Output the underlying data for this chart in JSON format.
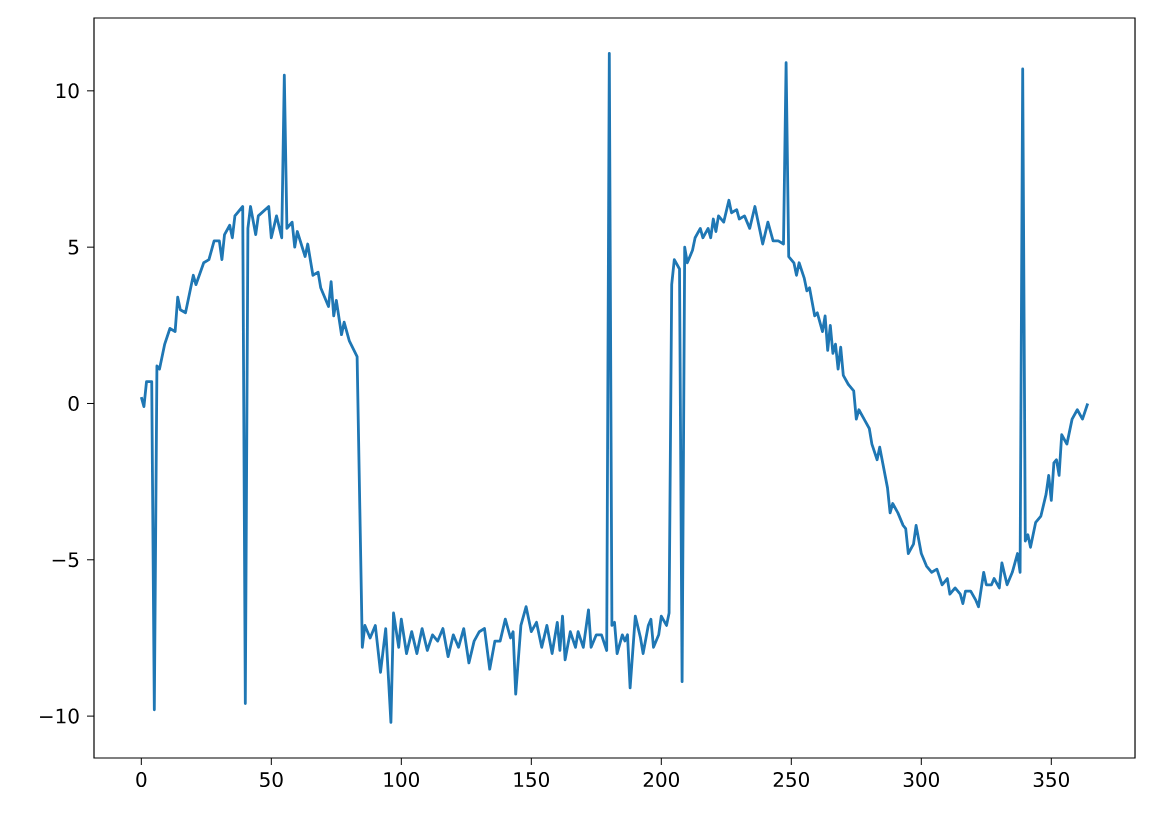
{
  "chart_data": {
    "type": "line",
    "color": "#1f77b4",
    "line_style": "solid",
    "x": [
      0,
      1,
      2,
      4,
      5,
      6,
      7,
      9,
      11,
      13,
      14,
      15,
      17,
      20,
      21,
      24,
      26,
      28,
      30,
      31,
      32,
      34,
      35,
      36,
      39,
      40,
      41,
      42,
      44,
      45,
      49,
      50,
      52,
      54,
      55,
      56,
      58,
      59,
      60,
      63,
      64,
      66,
      68,
      69,
      72,
      73,
      74,
      75,
      77,
      78,
      80,
      83,
      85,
      86,
      88,
      90,
      92,
      94,
      96,
      97,
      99,
      100,
      102,
      104,
      106,
      108,
      110,
      112,
      114,
      116,
      118,
      120,
      122,
      124,
      126,
      128,
      130,
      132,
      134,
      136,
      138,
      140,
      142,
      143,
      144,
      146,
      148,
      150,
      152,
      154,
      156,
      158,
      160,
      161,
      162,
      163,
      165,
      167,
      168,
      170,
      172,
      173,
      175,
      177,
      179,
      180,
      181,
      182,
      183,
      185,
      186,
      187,
      188,
      190,
      192,
      193,
      195,
      196,
      197,
      199,
      200,
      202,
      203,
      204,
      205,
      207,
      208,
      209,
      210,
      212,
      213,
      215,
      216,
      218,
      219,
      220,
      221,
      222,
      224,
      226,
      227,
      229,
      230,
      232,
      234,
      236,
      238,
      239,
      241,
      243,
      245,
      247,
      248,
      249,
      251,
      252,
      253,
      255,
      256,
      257,
      259,
      260,
      262,
      263,
      264,
      265,
      266,
      267,
      268,
      269,
      270,
      272,
      274,
      275,
      276,
      278,
      280,
      281,
      283,
      284,
      287,
      288,
      289,
      291,
      293,
      294,
      295,
      297,
      298,
      300,
      302,
      304,
      306,
      308,
      310,
      311,
      313,
      315,
      316,
      317,
      319,
      321,
      322,
      324,
      325,
      327,
      328,
      330,
      331,
      333,
      335,
      337,
      338,
      339,
      340,
      341,
      342,
      344,
      346,
      348,
      349,
      350,
      351,
      352,
      353,
      354,
      356,
      358,
      360,
      362,
      364
    ],
    "values": [
      0.2,
      -0.1,
      0.7,
      0.7,
      -9.8,
      1.2,
      1.1,
      1.9,
      2.4,
      2.3,
      3.4,
      3.0,
      2.9,
      4.1,
      3.8,
      4.5,
      4.6,
      5.2,
      5.2,
      4.6,
      5.4,
      5.7,
      5.3,
      6.0,
      6.3,
      -9.6,
      5.6,
      6.3,
      5.4,
      6.0,
      6.3,
      5.3,
      6.0,
      5.3,
      10.5,
      5.6,
      5.8,
      5.0,
      5.5,
      4.7,
      5.1,
      4.1,
      4.2,
      3.7,
      3.1,
      3.9,
      2.8,
      3.3,
      2.2,
      2.6,
      2.0,
      1.5,
      -7.8,
      -7.1,
      -7.5,
      -7.1,
      -8.6,
      -7.2,
      -10.2,
      -6.7,
      -7.8,
      -6.9,
      -8.0,
      -7.3,
      -8.0,
      -7.2,
      -7.9,
      -7.4,
      -7.6,
      -7.2,
      -8.1,
      -7.4,
      -7.8,
      -7.2,
      -8.3,
      -7.6,
      -7.3,
      -7.2,
      -8.5,
      -7.6,
      -7.6,
      -6.9,
      -7.5,
      -7.3,
      -9.3,
      -7.1,
      -6.5,
      -7.3,
      -7.0,
      -7.8,
      -7.1,
      -8.0,
      -7.0,
      -7.9,
      -6.8,
      -8.2,
      -7.3,
      -7.8,
      -7.3,
      -7.8,
      -6.6,
      -7.8,
      -7.4,
      -7.4,
      -7.9,
      11.2,
      -7.1,
      -7.0,
      -8.0,
      -7.4,
      -7.6,
      -7.4,
      -9.1,
      -6.8,
      -7.5,
      -8.0,
      -7.1,
      -6.9,
      -7.8,
      -7.4,
      -6.8,
      -7.1,
      -6.7,
      3.8,
      4.6,
      4.3,
      -8.9,
      5.0,
      4.5,
      4.9,
      5.3,
      5.6,
      5.3,
      5.6,
      5.3,
      5.9,
      5.5,
      6.0,
      5.8,
      6.5,
      6.1,
      6.2,
      5.9,
      6.0,
      5.6,
      6.3,
      5.5,
      5.1,
      5.8,
      5.2,
      5.2,
      5.1,
      10.9,
      4.7,
      4.5,
      4.1,
      4.5,
      4.0,
      3.6,
      3.7,
      2.8,
      2.9,
      2.3,
      2.8,
      1.7,
      2.5,
      1.6,
      1.9,
      1.1,
      1.8,
      0.9,
      0.6,
      0.4,
      -0.5,
      -0.2,
      -0.5,
      -0.8,
      -1.3,
      -1.8,
      -1.4,
      -2.7,
      -3.5,
      -3.2,
      -3.5,
      -3.9,
      -4.0,
      -4.8,
      -4.5,
      -3.9,
      -4.8,
      -5.2,
      -5.4,
      -5.3,
      -5.8,
      -5.6,
      -6.1,
      -5.9,
      -6.1,
      -6.4,
      -6.0,
      -6.0,
      -6.3,
      -6.5,
      -5.4,
      -5.8,
      -5.8,
      -5.6,
      -5.9,
      -5.1,
      -5.8,
      -5.4,
      -4.8,
      -5.4,
      10.7,
      -4.4,
      -4.2,
      -4.6,
      -3.8,
      -3.6,
      -2.9,
      -2.3,
      -3.1,
      -1.9,
      -1.8,
      -2.3,
      -1.0,
      -1.3,
      -0.5,
      -0.2,
      -0.5,
      0.0
    ],
    "xlim": [
      -18.2,
      382.2
    ],
    "ylim": [
      -11.34,
      12.33
    ],
    "xticks": [
      0,
      50,
      100,
      150,
      200,
      250,
      300,
      350
    ],
    "yticks": [
      {
        "value": -10,
        "label": "−10"
      },
      {
        "value": -5,
        "label": "−5"
      },
      0,
      5,
      10
    ]
  }
}
